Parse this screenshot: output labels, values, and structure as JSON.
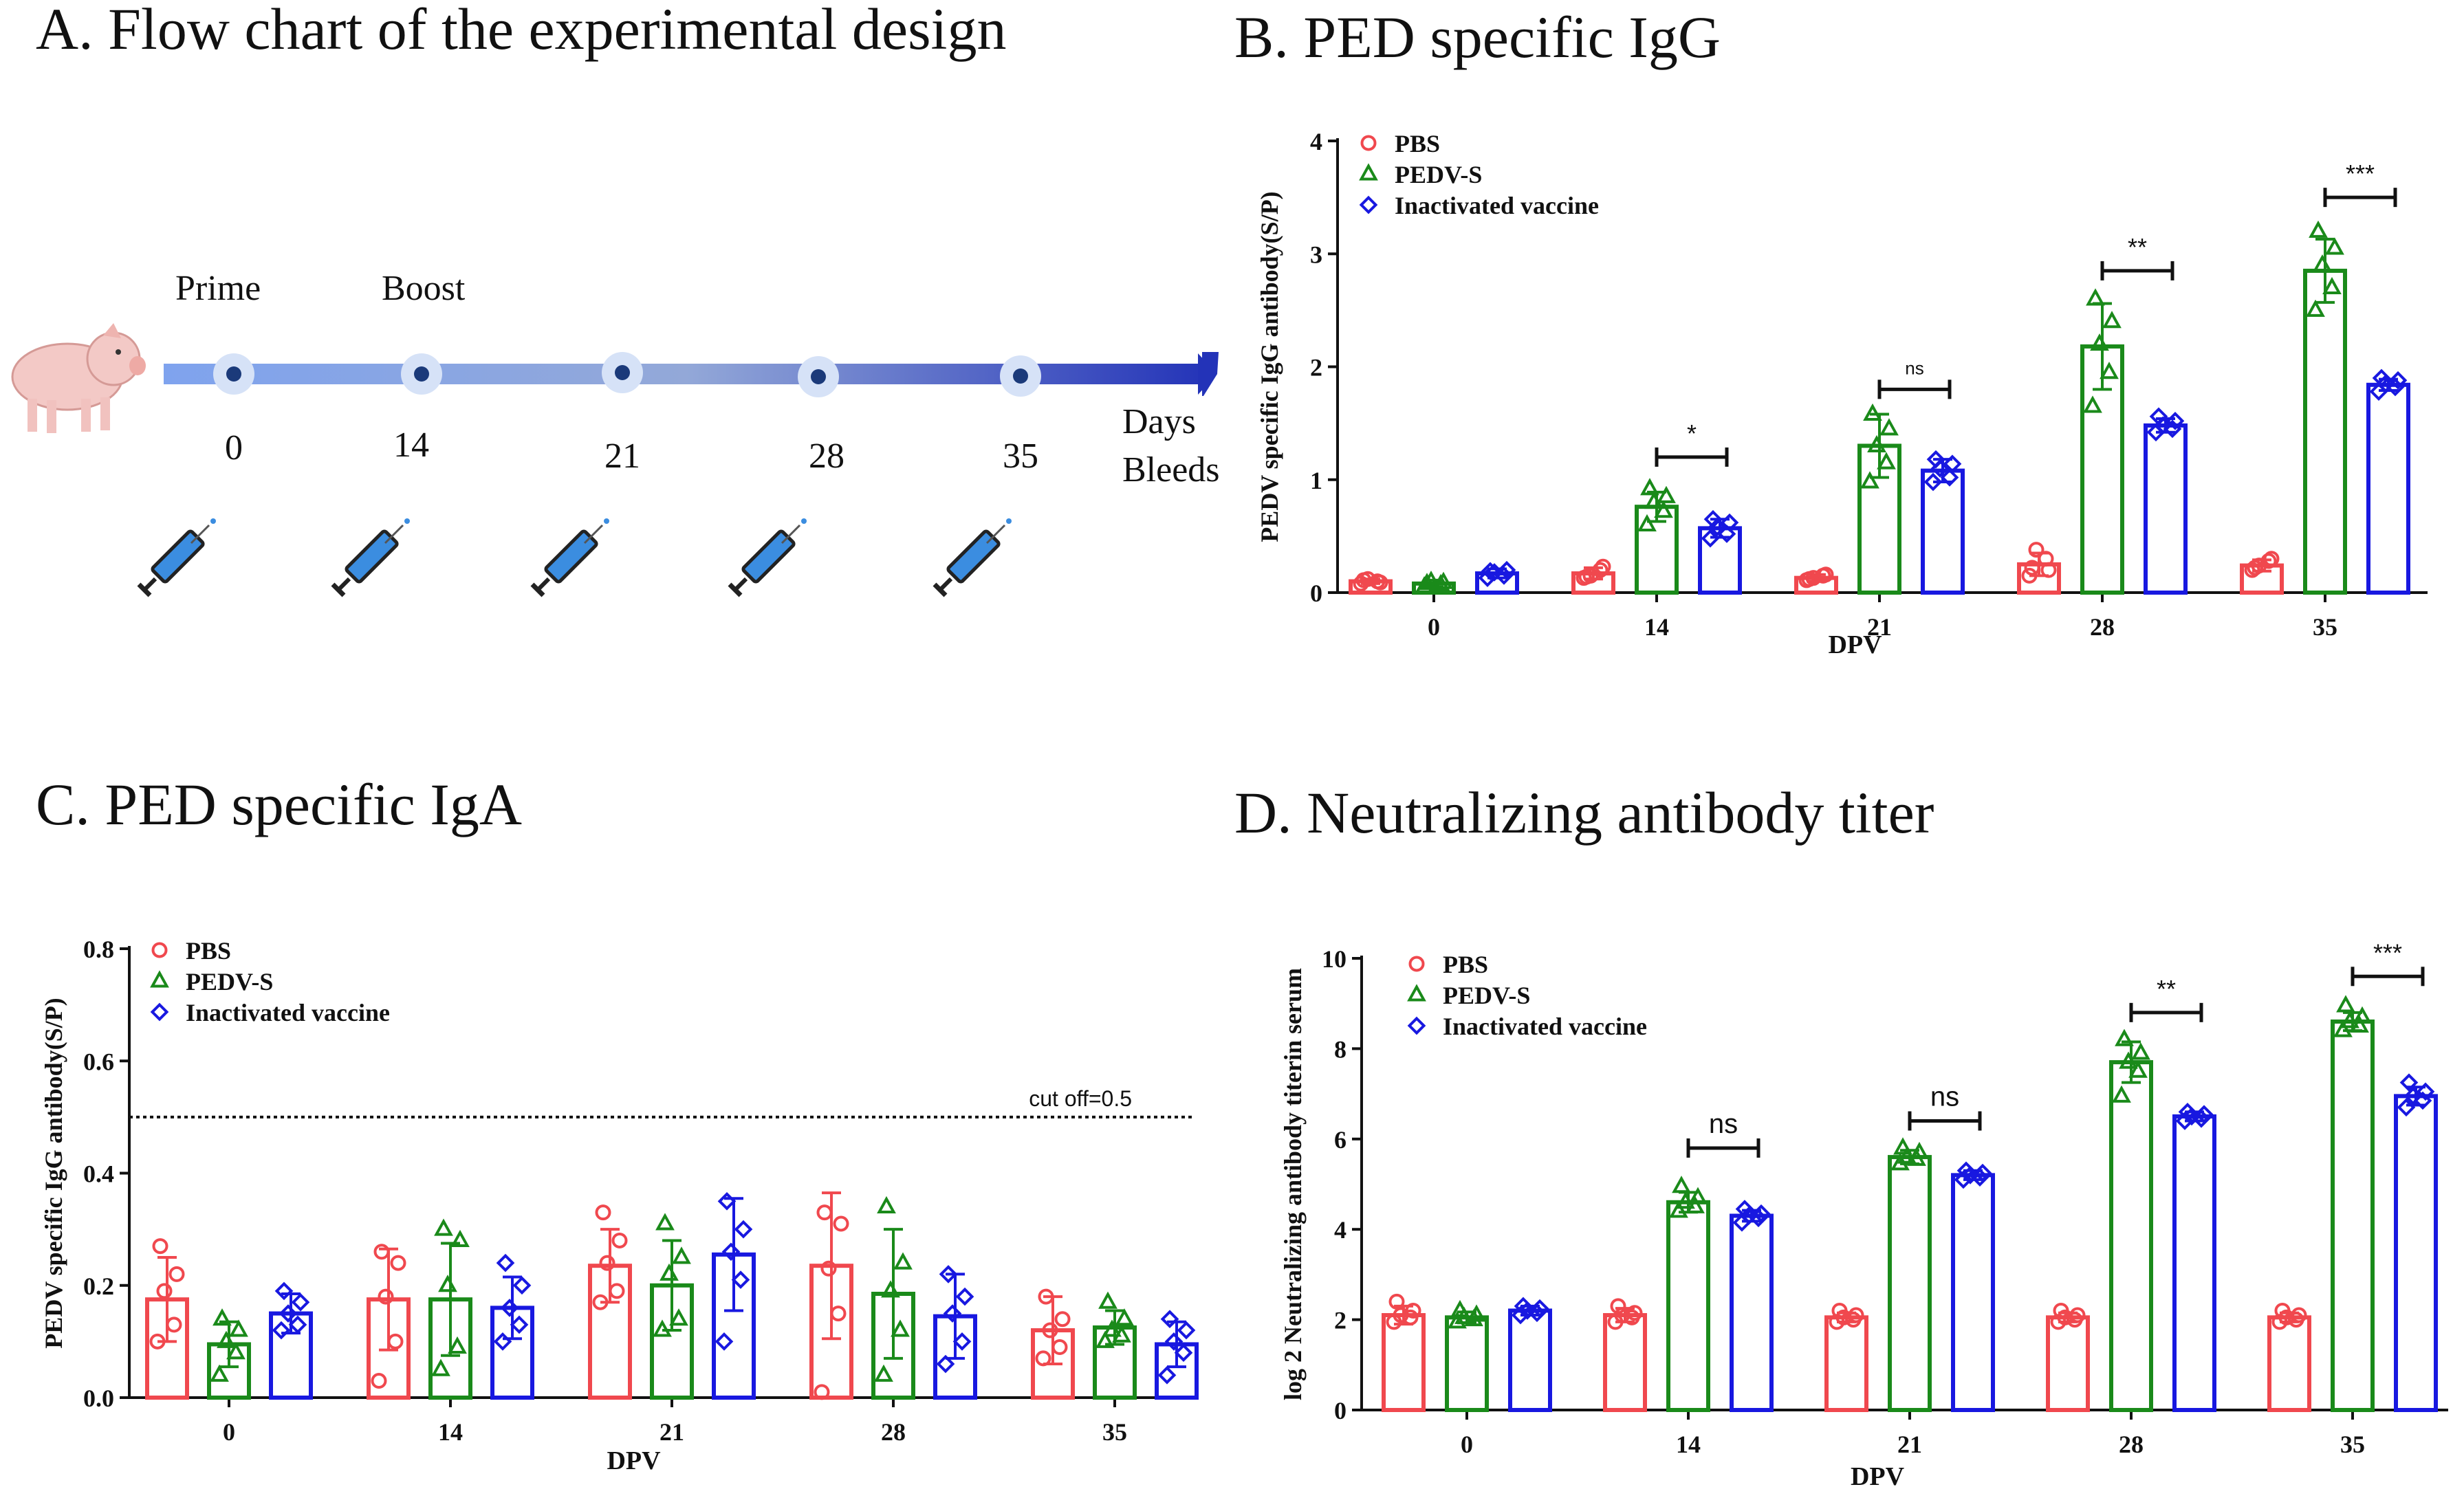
{
  "panels": {
    "a_title": "A. Flow chart of the experimental design",
    "b_title": "B. PED specific IgG",
    "c_title": "C. PED specific IgA",
    "d_title": "D. Neutralizing antibody titer"
  },
  "flowchart": {
    "prime_label": "Prime",
    "boost_label": "Boost",
    "days_label": "Days",
    "bleeds_label": "Bleeds",
    "days": [
      "0",
      "14",
      "21",
      "28",
      "35"
    ],
    "icons": [
      "pig-icon",
      "syringe-icon"
    ]
  },
  "colors": {
    "PBS": "#f0484e",
    "PEDV-S": "#1a8a1a",
    "Inactivated vaccine": "#1818e0"
  },
  "chart_data": [
    {
      "id": "igg",
      "type": "bar",
      "title": "B. PED specific IgG",
      "xlabel": "DPV",
      "ylabel": "PEDV specific IgG  antibody(S/P)",
      "categories": [
        "0",
        "14",
        "21",
        "28",
        "35"
      ],
      "ylim": [
        0,
        4
      ],
      "yticks": [
        "0",
        "1",
        "2",
        "3",
        "4"
      ],
      "legend_position": "top-left",
      "series": [
        {
          "name": "PBS",
          "marker": "circle",
          "values": [
            0.1,
            0.17,
            0.13,
            0.25,
            0.24
          ],
          "errors": [
            0.02,
            0.05,
            0.03,
            0.1,
            0.05
          ],
          "points": [
            [
              0.08,
              0.1,
              0.12,
              0.09,
              0.11
            ],
            [
              0.13,
              0.2,
              0.15,
              0.23,
              0.14
            ],
            [
              0.11,
              0.15,
              0.13,
              0.16,
              0.12
            ],
            [
              0.15,
              0.3,
              0.38,
              0.2,
              0.22
            ],
            [
              0.2,
              0.28,
              0.24,
              0.3,
              0.22
            ]
          ]
        },
        {
          "name": "PEDV-S",
          "marker": "triangle",
          "values": [
            0.08,
            0.76,
            1.3,
            2.18,
            2.85
          ],
          "errors": [
            0.03,
            0.13,
            0.28,
            0.38,
            0.28
          ],
          "points": [
            [
              0.05,
              0.07,
              0.1,
              0.09,
              0.08
            ],
            [
              0.6,
              0.72,
              0.8,
              0.85,
              0.92
            ],
            [
              0.98,
              1.15,
              1.3,
              1.45,
              1.58
            ],
            [
              1.65,
              1.95,
              2.2,
              2.4,
              2.6
            ],
            [
              2.5,
              2.7,
              2.9,
              3.05,
              3.2
            ]
          ]
        },
        {
          "name": "Inactivated vaccine",
          "marker": "diamond",
          "values": [
            0.17,
            0.57,
            1.08,
            1.48,
            1.84
          ],
          "errors": [
            0.04,
            0.08,
            0.1,
            0.06,
            0.05
          ],
          "points": [
            [
              0.13,
              0.15,
              0.18,
              0.2,
              0.19
            ],
            [
              0.48,
              0.52,
              0.58,
              0.62,
              0.65
            ],
            [
              0.98,
              1.02,
              1.1,
              1.14,
              1.18
            ],
            [
              1.42,
              1.45,
              1.48,
              1.52,
              1.56
            ],
            [
              1.78,
              1.82,
              1.85,
              1.88,
              1.9
            ]
          ]
        }
      ],
      "comparisons": [
        {
          "category": "14",
          "label": "*",
          "y": 1.2
        },
        {
          "category": "21",
          "label": "ns",
          "y": 1.8
        },
        {
          "category": "28",
          "label": "**",
          "y": 2.85
        },
        {
          "category": "35",
          "label": "***",
          "y": 3.5
        }
      ]
    },
    {
      "id": "iga",
      "type": "bar",
      "title": "C. PED specific IgA",
      "xlabel": "DPV",
      "ylabel": "PEDV specific IgG  antibody(S/P)",
      "categories": [
        "0",
        "14",
        "21",
        "28",
        "35"
      ],
      "ylim": [
        0,
        0.8
      ],
      "yticks": [
        "0.0",
        "0.2",
        "0.4",
        "0.6",
        "0.8"
      ],
      "legend_position": "top-left",
      "cutoff": {
        "value": 0.5,
        "label": "cut off=0.5"
      },
      "series": [
        {
          "name": "PBS",
          "marker": "circle",
          "values": [
            0.175,
            0.175,
            0.235,
            0.235,
            0.12
          ],
          "errors": [
            0.075,
            0.09,
            0.065,
            0.13,
            0.06
          ],
          "points": [
            [
              0.1,
              0.13,
              0.19,
              0.22,
              0.27
            ],
            [
              0.03,
              0.1,
              0.18,
              0.24,
              0.26
            ],
            [
              0.17,
              0.19,
              0.24,
              0.28,
              0.33
            ],
            [
              0.01,
              0.15,
              0.23,
              0.31,
              0.33
            ],
            [
              0.07,
              0.09,
              0.12,
              0.14,
              0.18
            ]
          ]
        },
        {
          "name": "PEDV-S",
          "marker": "triangle",
          "values": [
            0.095,
            0.175,
            0.2,
            0.185,
            0.125
          ],
          "errors": [
            0.04,
            0.1,
            0.08,
            0.115,
            0.03
          ],
          "points": [
            [
              0.04,
              0.08,
              0.1,
              0.12,
              0.14
            ],
            [
              0.05,
              0.09,
              0.2,
              0.28,
              0.3
            ],
            [
              0.12,
              0.14,
              0.22,
              0.25,
              0.31
            ],
            [
              0.04,
              0.12,
              0.19,
              0.24,
              0.34
            ],
            [
              0.1,
              0.11,
              0.12,
              0.14,
              0.17
            ]
          ]
        },
        {
          "name": "Inactivated vaccine",
          "marker": "diamond",
          "values": [
            0.15,
            0.16,
            0.255,
            0.145,
            0.095
          ],
          "errors": [
            0.035,
            0.055,
            0.1,
            0.075,
            0.04
          ],
          "points": [
            [
              0.12,
              0.13,
              0.15,
              0.17,
              0.19
            ],
            [
              0.1,
              0.13,
              0.16,
              0.2,
              0.24
            ],
            [
              0.1,
              0.21,
              0.26,
              0.3,
              0.35
            ],
            [
              0.06,
              0.1,
              0.15,
              0.18,
              0.22
            ],
            [
              0.04,
              0.08,
              0.1,
              0.12,
              0.14
            ]
          ]
        }
      ]
    },
    {
      "id": "nab",
      "type": "bar",
      "title": "D. Neutralizing antibody titer",
      "xlabel": "DPV",
      "ylabel": "log 2 Neutralizing antibody titerin serum",
      "categories": [
        "0",
        "14",
        "21",
        "28",
        "35"
      ],
      "ylim": [
        0,
        10
      ],
      "yticks": [
        "0",
        "2",
        "4",
        "6",
        "8",
        "10"
      ],
      "legend_position": "top-left",
      "series": [
        {
          "name": "PBS",
          "marker": "circle",
          "values": [
            2.1,
            2.1,
            2.05,
            2.05,
            2.05
          ],
          "errors": [
            0.2,
            0.15,
            0.1,
            0.1,
            0.1
          ],
          "points": [
            [
              1.95,
              2.05,
              2.1,
              2.2,
              2.4
            ],
            [
              1.95,
              2.05,
              2.1,
              2.15,
              2.3
            ],
            [
              1.95,
              2.0,
              2.05,
              2.1,
              2.2
            ],
            [
              1.95,
              2.0,
              2.05,
              2.1,
              2.2
            ],
            [
              1.95,
              2.0,
              2.05,
              2.1,
              2.2
            ]
          ]
        },
        {
          "name": "PEDV-S",
          "marker": "triangle",
          "values": [
            2.05,
            4.6,
            5.6,
            7.7,
            8.6
          ],
          "errors": [
            0.12,
            0.22,
            0.15,
            0.45,
            0.2
          ],
          "points": [
            [
              1.95,
              2.0,
              2.05,
              2.1,
              2.2
            ],
            [
              4.4,
              4.5,
              4.6,
              4.7,
              4.95
            ],
            [
              5.45,
              5.55,
              5.6,
              5.7,
              5.8
            ],
            [
              6.95,
              7.5,
              7.7,
              7.9,
              8.2
            ],
            [
              8.4,
              8.5,
              8.6,
              8.7,
              8.95
            ]
          ]
        },
        {
          "name": "Inactivated vaccine",
          "marker": "diamond",
          "values": [
            2.2,
            4.3,
            5.2,
            6.5,
            6.95
          ],
          "errors": [
            0.1,
            0.12,
            0.1,
            0.1,
            0.2
          ],
          "points": [
            [
              2.1,
              2.15,
              2.2,
              2.25,
              2.3
            ],
            [
              4.15,
              4.25,
              4.3,
              4.35,
              4.45
            ],
            [
              5.1,
              5.15,
              5.2,
              5.25,
              5.3
            ],
            [
              6.4,
              6.45,
              6.5,
              6.55,
              6.6
            ],
            [
              6.7,
              6.85,
              6.95,
              7.05,
              7.25
            ]
          ]
        }
      ],
      "comparisons": [
        {
          "category": "14",
          "label": "ns",
          "y": 5.8
        },
        {
          "category": "21",
          "label": "ns",
          "y": 6.4
        },
        {
          "category": "28",
          "label": "**",
          "y": 8.8
        },
        {
          "category": "35",
          "label": "***",
          "y": 9.6
        }
      ]
    }
  ]
}
